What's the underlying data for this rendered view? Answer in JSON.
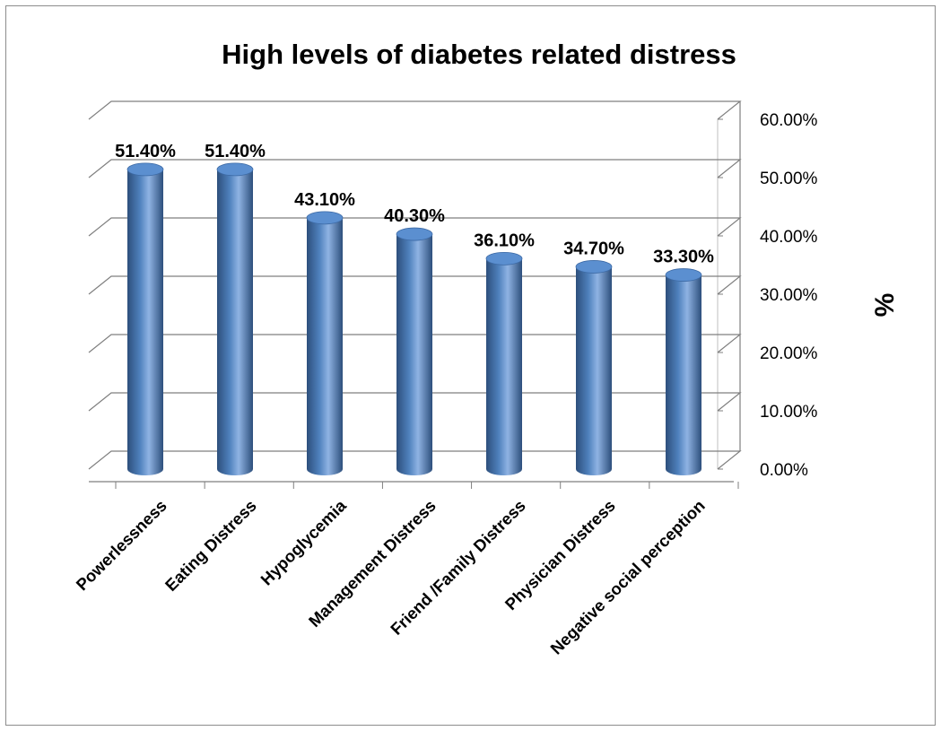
{
  "chart_data": {
    "type": "bar",
    "title": "High levels of  diabetes related distress",
    "ylabel": "%",
    "categories": [
      "Powerlessness",
      "Eating Distress",
      "Hypoglycemia",
      "Management Distress",
      "Friend /Family Distress",
      "Physician Distress",
      "Negative social perception"
    ],
    "values": [
      51.4,
      51.4,
      43.1,
      40.3,
      36.1,
      34.7,
      33.3
    ],
    "data_labels": [
      "51.40%",
      "51.40%",
      "43.10%",
      "40.30%",
      "36.10%",
      "34.70%",
      "33.30%"
    ],
    "yticks": [
      "0.00%",
      "10.00%",
      "20.00%",
      "30.00%",
      "40.00%",
      "50.00%",
      "60.00%"
    ],
    "ylim": [
      0,
      60
    ],
    "y_axis_position": "right",
    "grid": true,
    "legend": "none",
    "bar_style": "3d-cylinder",
    "colors": {
      "bar": "#4f81bd",
      "bar_dark": "#2d4f7c",
      "bar_light": "#8fb3e3",
      "grid": "#7f7f7f"
    }
  }
}
